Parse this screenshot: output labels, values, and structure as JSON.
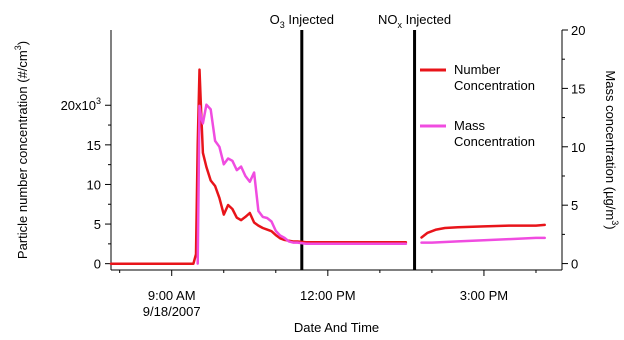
{
  "chart_data": {
    "type": "line",
    "x_axis": {
      "label": "Date And Time",
      "range": [
        "2007-09-18T07:50",
        "2007-09-18T16:30"
      ],
      "ticks": [
        {
          "time": "2007-09-18T09:00",
          "label": "9:00 AM",
          "sublabel": "9/18/2007"
        },
        {
          "time": "2007-09-18T12:00",
          "label": "12:00 PM"
        },
        {
          "time": "2007-09-18T15:00",
          "label": "3:00 PM"
        }
      ]
    },
    "y_left": {
      "label": "Particle number concentration (#/cm³)",
      "label_main": "Particle number concentration (#/cm",
      "label_sup": "3",
      "label_close": ")",
      "range": [
        -800,
        29500
      ],
      "ticks": [
        {
          "value": 0,
          "label": "0"
        },
        {
          "value": 5000,
          "label": "5"
        },
        {
          "value": 10000,
          "label": "10"
        },
        {
          "value": 15000,
          "label": "15"
        },
        {
          "value": 20000,
          "label": "20x10",
          "sup": "3"
        }
      ]
    },
    "y_right": {
      "label": "Mass concentration (µg/m³)",
      "label_main": "Mass concentration (µg/m",
      "label_sup": "3",
      "label_close": ")",
      "range": [
        -0.55,
        20
      ],
      "ticks": [
        {
          "value": 0,
          "label": "0"
        },
        {
          "value": 5,
          "label": "5"
        },
        {
          "value": 10,
          "label": "10"
        },
        {
          "value": 15,
          "label": "15"
        },
        {
          "value": 20,
          "label": "20"
        }
      ]
    },
    "annotations": [
      {
        "time": "2007-09-18T11:30",
        "text": "O",
        "sub": "3",
        "rest": " Injected"
      },
      {
        "time": "2007-09-18T13:40",
        "text": "NO",
        "sub": "x",
        "rest": " Injected"
      }
    ],
    "legend": {
      "position": "top-right",
      "entries": [
        {
          "lines": [
            "Number",
            "Concentration"
          ]
        },
        {
          "lines": [
            "Mass",
            "Concentration"
          ]
        }
      ]
    },
    "series": [
      {
        "name": "Number Concentration",
        "axis": "left",
        "color": "#e8141a",
        "segments": [
          [
            [
              "2007-09-18T07:50",
              0
            ],
            [
              "2007-09-18T08:30",
              0
            ],
            [
              "2007-09-18T09:10",
              0
            ],
            [
              "2007-09-18T09:25",
              0
            ],
            [
              "2007-09-18T09:28",
              1200
            ],
            [
              "2007-09-18T09:30",
              15000
            ],
            [
              "2007-09-18T09:32",
              24500
            ],
            [
              "2007-09-18T09:34",
              19000
            ],
            [
              "2007-09-18T09:36",
              14000
            ],
            [
              "2007-09-18T09:40",
              12200
            ],
            [
              "2007-09-18T09:45",
              10500
            ],
            [
              "2007-09-18T09:50",
              9800
            ],
            [
              "2007-09-18T09:55",
              8300
            ],
            [
              "2007-09-18T10:00",
              6200
            ],
            [
              "2007-09-18T10:05",
              7400
            ],
            [
              "2007-09-18T10:10",
              6900
            ],
            [
              "2007-09-18T10:15",
              5800
            ],
            [
              "2007-09-18T10:20",
              5500
            ],
            [
              "2007-09-18T10:25",
              5900
            ],
            [
              "2007-09-18T10:30",
              6400
            ],
            [
              "2007-09-18T10:35",
              5200
            ],
            [
              "2007-09-18T10:40",
              4800
            ],
            [
              "2007-09-18T10:45",
              4500
            ],
            [
              "2007-09-18T10:50",
              4300
            ],
            [
              "2007-09-18T10:55",
              4100
            ],
            [
              "2007-09-18T11:00",
              3600
            ],
            [
              "2007-09-18T11:05",
              3200
            ],
            [
              "2007-09-18T11:10",
              3000
            ],
            [
              "2007-09-18T11:15",
              2900
            ],
            [
              "2007-09-18T11:20",
              2800
            ],
            [
              "2007-09-18T11:25",
              2800
            ],
            [
              "2007-09-18T11:35",
              2700
            ],
            [
              "2007-09-18T12:00",
              2700
            ],
            [
              "2007-09-18T12:30",
              2700
            ],
            [
              "2007-09-18T13:00",
              2700
            ],
            [
              "2007-09-18T13:30",
              2700
            ]
          ],
          [
            [
              "2007-09-18T13:48",
              3300
            ],
            [
              "2007-09-18T13:55",
              3900
            ],
            [
              "2007-09-18T14:05",
              4300
            ],
            [
              "2007-09-18T14:15",
              4500
            ],
            [
              "2007-09-18T14:30",
              4600
            ],
            [
              "2007-09-18T15:00",
              4700
            ],
            [
              "2007-09-18T15:30",
              4800
            ],
            [
              "2007-09-18T16:00",
              4800
            ],
            [
              "2007-09-18T16:10",
              4900
            ]
          ]
        ]
      },
      {
        "name": "Mass Concentration",
        "axis": "right",
        "color": "#f04ce0",
        "segments": [
          [
            [
              "2007-09-18T09:30",
              0
            ],
            [
              "2007-09-18T09:32",
              13.5
            ],
            [
              "2007-09-18T09:34",
              12.5
            ],
            [
              "2007-09-18T09:36",
              12.0
            ],
            [
              "2007-09-18T09:40",
              13.6
            ],
            [
              "2007-09-18T09:45",
              13.2
            ],
            [
              "2007-09-18T09:50",
              10.5
            ],
            [
              "2007-09-18T09:55",
              10.0
            ],
            [
              "2007-09-18T10:00",
              8.5
            ],
            [
              "2007-09-18T10:05",
              9.0
            ],
            [
              "2007-09-18T10:10",
              8.8
            ],
            [
              "2007-09-18T10:15",
              8.0
            ],
            [
              "2007-09-18T10:20",
              8.3
            ],
            [
              "2007-09-18T10:25",
              7.5
            ],
            [
              "2007-09-18T10:30",
              7.0
            ],
            [
              "2007-09-18T10:35",
              7.8
            ],
            [
              "2007-09-18T10:40",
              4.5
            ],
            [
              "2007-09-18T10:45",
              4.0
            ],
            [
              "2007-09-18T10:50",
              3.9
            ],
            [
              "2007-09-18T10:55",
              3.6
            ],
            [
              "2007-09-18T11:00",
              2.8
            ],
            [
              "2007-09-18T11:05",
              2.4
            ],
            [
              "2007-09-18T11:10",
              2.2
            ],
            [
              "2007-09-18T11:15",
              1.9
            ],
            [
              "2007-09-18T11:20",
              1.8
            ],
            [
              "2007-09-18T11:25",
              1.8
            ],
            [
              "2007-09-18T11:35",
              1.7
            ],
            [
              "2007-09-18T12:00",
              1.7
            ],
            [
              "2007-09-18T12:30",
              1.7
            ],
            [
              "2007-09-18T13:00",
              1.7
            ],
            [
              "2007-09-18T13:30",
              1.7
            ]
          ],
          [
            [
              "2007-09-18T13:48",
              1.8
            ],
            [
              "2007-09-18T14:00",
              1.8
            ],
            [
              "2007-09-18T14:30",
              1.9
            ],
            [
              "2007-09-18T15:00",
              2.0
            ],
            [
              "2007-09-18T15:30",
              2.1
            ],
            [
              "2007-09-18T16:00",
              2.2
            ],
            [
              "2007-09-18T16:10",
              2.2
            ]
          ]
        ]
      }
    ],
    "gridlines": false
  }
}
